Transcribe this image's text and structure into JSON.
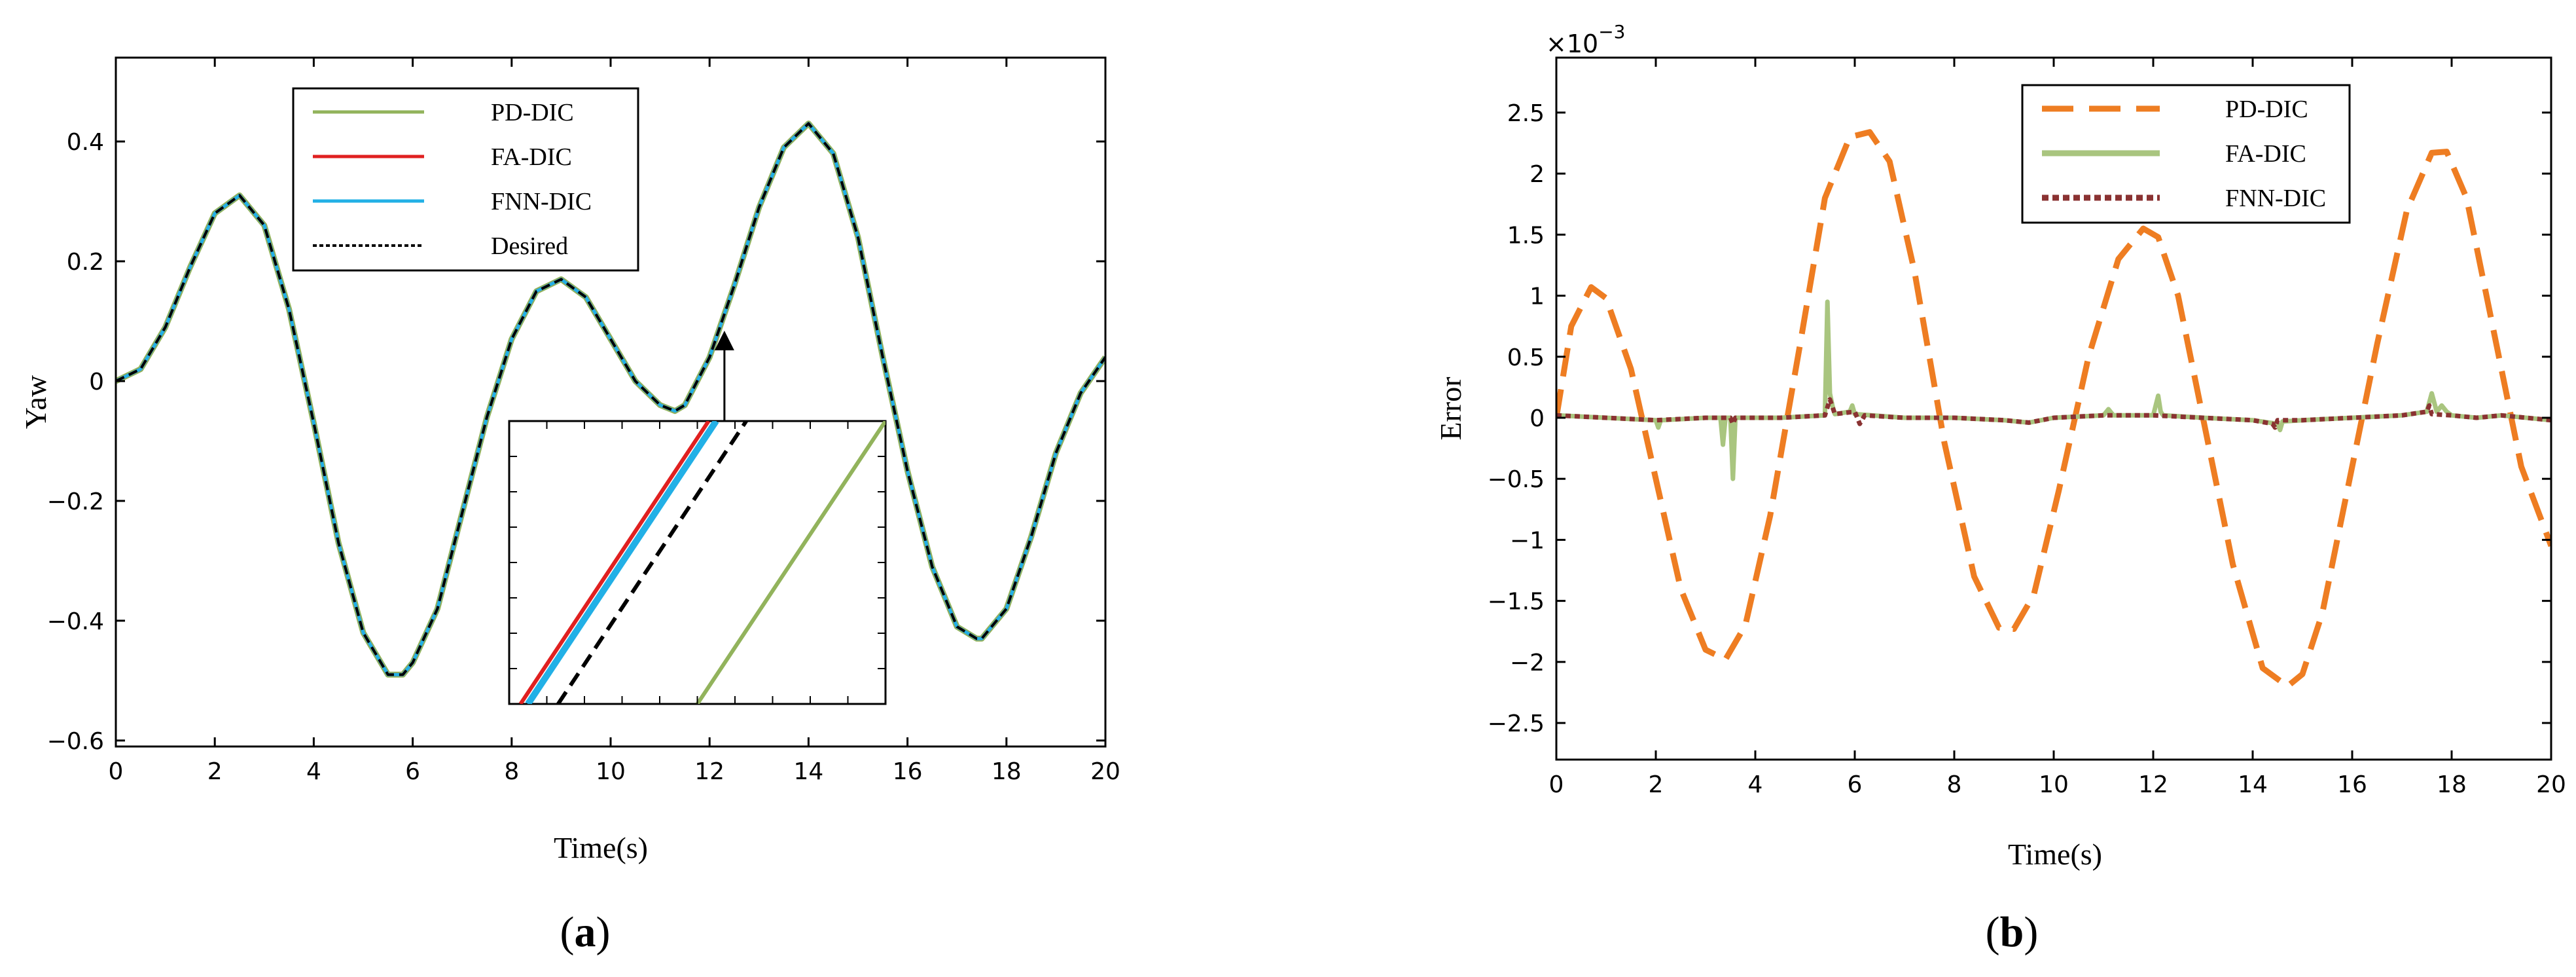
{
  "chart_data": [
    {
      "type": "line",
      "panel_label": "a",
      "xlabel": "Time(s)",
      "ylabel": "Yaw",
      "xlim": [
        0,
        20
      ],
      "ylim": [
        -0.61,
        0.54
      ],
      "xticks": [
        0,
        2,
        4,
        6,
        8,
        10,
        12,
        14,
        16,
        18,
        20
      ],
      "yticks": [
        -0.6,
        -0.4,
        -0.2,
        0,
        0.2,
        0.4
      ],
      "ytick_labels": [
        "−0.6",
        "−0.4",
        "−0.2",
        "0",
        "0.2",
        "0.4"
      ],
      "grid": false,
      "legend_position": "top-center",
      "x": [
        0,
        0.5,
        1,
        1.5,
        2,
        2.5,
        3,
        3.5,
        4,
        4.5,
        5,
        5.5,
        5.8,
        6,
        6.5,
        7,
        7.5,
        8,
        8.5,
        9,
        9.5,
        10,
        10.5,
        11,
        11.3,
        11.5,
        12,
        12.5,
        13,
        13.5,
        14,
        14.5,
        15,
        15.5,
        16,
        16.5,
        17,
        17.4,
        17.5,
        18,
        18.5,
        19,
        19.5,
        20
      ],
      "series": [
        {
          "name": "PD-DIC",
          "color": "#92b35c",
          "style": "solid",
          "values": [
            0.0,
            0.02,
            0.09,
            0.19,
            0.28,
            0.31,
            0.26,
            0.12,
            -0.07,
            -0.27,
            -0.42,
            -0.49,
            -0.49,
            -0.47,
            -0.38,
            -0.22,
            -0.06,
            0.07,
            0.15,
            0.17,
            0.14,
            0.07,
            0.0,
            -0.04,
            -0.05,
            -0.04,
            0.04,
            0.16,
            0.29,
            0.39,
            0.43,
            0.38,
            0.24,
            0.04,
            -0.15,
            -0.31,
            -0.41,
            -0.43,
            -0.43,
            -0.38,
            -0.26,
            -0.12,
            -0.02,
            0.04
          ]
        },
        {
          "name": "FA-DIC",
          "color": "#e02020",
          "style": "solid",
          "values": [
            0.0,
            0.02,
            0.09,
            0.19,
            0.28,
            0.31,
            0.26,
            0.12,
            -0.07,
            -0.27,
            -0.42,
            -0.49,
            -0.49,
            -0.47,
            -0.38,
            -0.22,
            -0.06,
            0.07,
            0.15,
            0.17,
            0.14,
            0.07,
            0.0,
            -0.04,
            -0.05,
            -0.04,
            0.04,
            0.16,
            0.29,
            0.39,
            0.43,
            0.38,
            0.24,
            0.04,
            -0.15,
            -0.31,
            -0.41,
            -0.43,
            -0.43,
            -0.38,
            -0.26,
            -0.12,
            -0.02,
            0.04
          ]
        },
        {
          "name": "FNN-DIC",
          "color": "#22b0e6",
          "style": "solid",
          "values": [
            0.0,
            0.02,
            0.09,
            0.19,
            0.28,
            0.31,
            0.26,
            0.12,
            -0.07,
            -0.27,
            -0.42,
            -0.49,
            -0.49,
            -0.47,
            -0.38,
            -0.22,
            -0.06,
            0.07,
            0.15,
            0.17,
            0.14,
            0.07,
            0.0,
            -0.04,
            -0.05,
            -0.04,
            0.04,
            0.16,
            0.29,
            0.39,
            0.43,
            0.38,
            0.24,
            0.04,
            -0.15,
            -0.31,
            -0.41,
            -0.43,
            -0.43,
            -0.38,
            -0.26,
            -0.12,
            -0.02,
            0.04
          ]
        },
        {
          "name": "Desired",
          "color": "#000000",
          "style": "dashed",
          "values": [
            0.0,
            0.02,
            0.09,
            0.19,
            0.28,
            0.31,
            0.26,
            0.12,
            -0.07,
            -0.27,
            -0.42,
            -0.49,
            -0.49,
            -0.47,
            -0.38,
            -0.22,
            -0.06,
            0.07,
            0.15,
            0.17,
            0.14,
            0.07,
            0.0,
            -0.04,
            -0.05,
            -0.04,
            0.04,
            0.16,
            0.29,
            0.39,
            0.43,
            0.38,
            0.24,
            0.04,
            -0.15,
            -0.31,
            -0.41,
            -0.43,
            -0.43,
            -0.38,
            -0.26,
            -0.12,
            -0.02,
            0.04
          ]
        }
      ],
      "inset": {
        "description_free": true,
        "arrow_points_to_x": 12.3,
        "lines": [
          {
            "series": "FA-DIC",
            "color": "#e02020",
            "from": [
              0.03,
              0.0
            ],
            "to": [
              0.53,
              1.0
            ]
          },
          {
            "series": "FNN-DIC",
            "color": "#22b0e6",
            "from": [
              0.05,
              0.0
            ],
            "to": [
              0.55,
              1.0
            ]
          },
          {
            "series": "Desired",
            "color": "#000000",
            "dashed": true,
            "from": [
              0.13,
              0.0
            ],
            "to": [
              0.63,
              1.0
            ]
          },
          {
            "series": "PD-DIC",
            "color": "#92b35c",
            "from": [
              0.5,
              0.0
            ],
            "to": [
              1.0,
              1.0
            ]
          }
        ]
      }
    },
    {
      "type": "line",
      "panel_label": "b",
      "xlabel": "Time(s)",
      "ylabel": "Error",
      "multiplier": "×10",
      "multiplier_exp": "−3",
      "xlim": [
        0,
        20
      ],
      "ylim": [
        -2.8,
        2.95
      ],
      "xticks": [
        0,
        2,
        4,
        6,
        8,
        10,
        12,
        14,
        16,
        18,
        20
      ],
      "yticks": [
        -2.5,
        -2,
        -1.5,
        -1,
        -0.5,
        0,
        0.5,
        1,
        1.5,
        2,
        2.5
      ],
      "ytick_labels": [
        "−2.5",
        "−2",
        "−1.5",
        "−1",
        "−0.5",
        "0",
        "0.5",
        "1",
        "1.5",
        "2",
        "2.5"
      ],
      "grid": false,
      "legend_position": "top-right",
      "series": [
        {
          "name": "PD-DIC",
          "color": "#ee7d22",
          "style": "dashed",
          "x": [
            0,
            0.3,
            0.7,
            1.0,
            1.5,
            2.0,
            2.5,
            3.0,
            3.4,
            3.8,
            4.3,
            4.9,
            5.4,
            5.9,
            6.3,
            6.7,
            7.2,
            7.8,
            8.4,
            8.9,
            9.2,
            9.6,
            10.1,
            10.7,
            11.3,
            11.8,
            12.1,
            12.5,
            13.0,
            13.6,
            14.2,
            14.7,
            15.0,
            15.4,
            15.9,
            16.5,
            17.1,
            17.6,
            17.9,
            18.3,
            18.8,
            19.4,
            20.0
          ],
          "values": [
            0.0,
            0.75,
            1.07,
            0.98,
            0.4,
            -0.5,
            -1.4,
            -1.9,
            -1.98,
            -1.7,
            -0.8,
            0.6,
            1.8,
            2.3,
            2.34,
            2.1,
            1.2,
            -0.2,
            -1.3,
            -1.72,
            -1.73,
            -1.45,
            -0.6,
            0.5,
            1.3,
            1.55,
            1.48,
            1.0,
            0.0,
            -1.2,
            -2.05,
            -2.2,
            -2.1,
            -1.6,
            -0.6,
            0.6,
            1.7,
            2.17,
            2.18,
            1.8,
            0.8,
            -0.4,
            -1.05
          ]
        },
        {
          "name": "FA-DIC",
          "color": "#a9c57f",
          "style": "solid",
          "x": [
            0,
            1.0,
            2.0,
            2.05,
            2.1,
            3.0,
            3.3,
            3.35,
            3.4,
            3.5,
            3.55,
            3.6,
            4.5,
            5.4,
            5.45,
            5.5,
            5.55,
            5.6,
            5.9,
            5.95,
            6.0,
            7.0,
            8.0,
            9.0,
            9.5,
            10.0,
            11.0,
            11.1,
            11.2,
            12.0,
            12.1,
            12.15,
            12.2,
            13.0,
            14.0,
            14.5,
            14.55,
            14.6,
            15.0,
            16.0,
            17.0,
            17.5,
            17.6,
            17.7,
            17.8,
            17.9,
            18.0,
            18.5,
            19.0,
            20.0
          ],
          "values": [
            0.02,
            0.0,
            -0.02,
            -0.08,
            -0.02,
            0.0,
            0.0,
            -0.22,
            0.0,
            0.0,
            -0.5,
            0.0,
            0.0,
            0.02,
            0.95,
            0.2,
            0.1,
            0.03,
            0.05,
            0.1,
            0.03,
            0.0,
            0.0,
            -0.02,
            -0.04,
            0.0,
            0.02,
            0.07,
            0.02,
            0.02,
            0.18,
            0.05,
            0.02,
            0.0,
            -0.02,
            -0.05,
            -0.1,
            -0.03,
            -0.02,
            0.0,
            0.02,
            0.05,
            0.2,
            0.05,
            0.1,
            0.05,
            0.02,
            0.0,
            0.02,
            -0.02
          ]
        },
        {
          "name": "FNN-DIC",
          "color": "#8a3232",
          "style": "dotted",
          "x": [
            0,
            1.0,
            2.0,
            3.0,
            3.5,
            3.55,
            3.6,
            4.5,
            5.4,
            5.5,
            5.6,
            6.0,
            6.1,
            6.2,
            7.0,
            8.0,
            9.0,
            9.5,
            10.0,
            11.0,
            12.0,
            13.0,
            14.0,
            14.4,
            14.45,
            14.5,
            15.0,
            16.0,
            17.0,
            17.5,
            17.55,
            17.6,
            18.0,
            18.5,
            19.0,
            20.0
          ],
          "values": [
            0.02,
            0.0,
            -0.02,
            0.0,
            0.0,
            -0.05,
            0.0,
            0.0,
            0.02,
            0.15,
            0.03,
            0.05,
            -0.05,
            0.02,
            0.0,
            0.0,
            -0.02,
            -0.04,
            0.0,
            0.02,
            0.02,
            0.0,
            -0.02,
            -0.05,
            -0.08,
            -0.02,
            -0.02,
            0.0,
            0.02,
            0.05,
            0.1,
            0.03,
            0.02,
            0.0,
            0.02,
            -0.02
          ]
        }
      ]
    }
  ]
}
